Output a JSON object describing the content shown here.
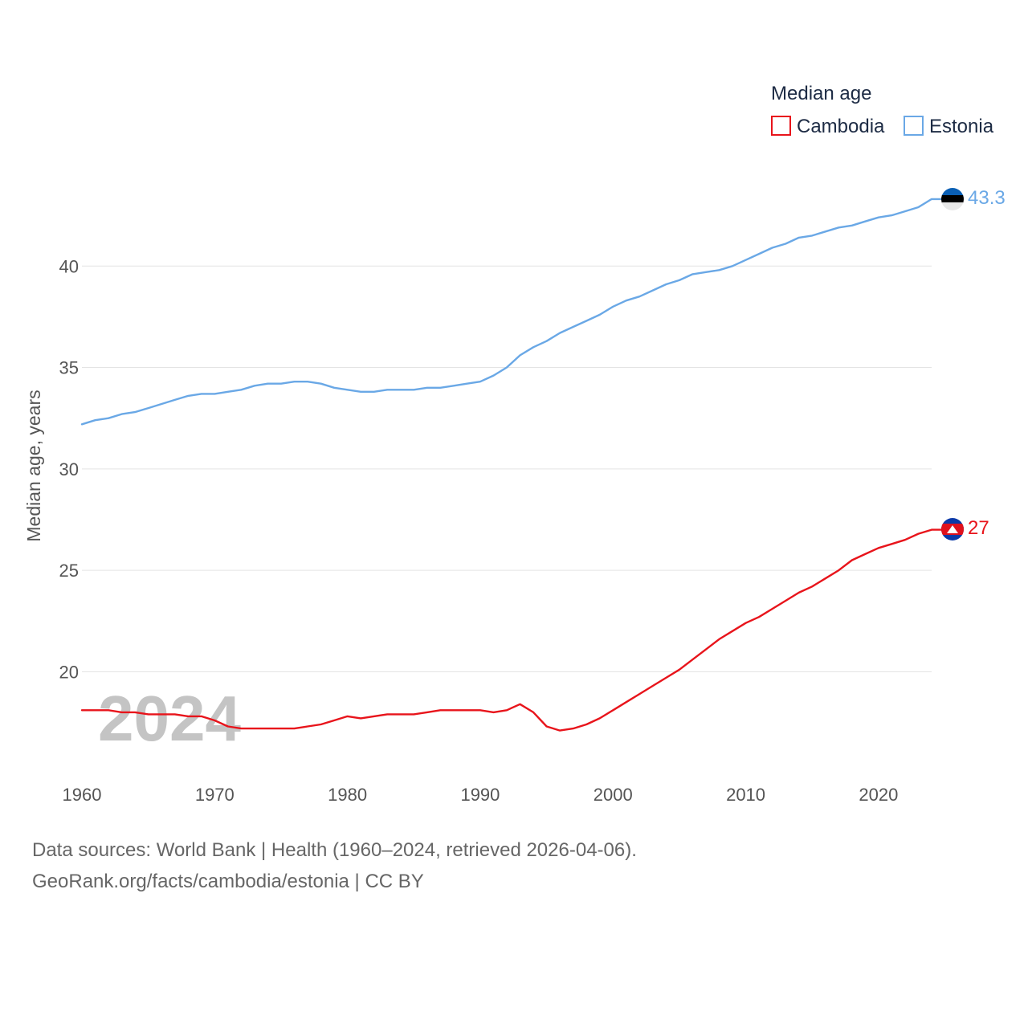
{
  "chart_data": {
    "type": "line",
    "title": "Median age",
    "ylabel": "Median age, years",
    "xlabel": "",
    "xlim": [
      1960,
      2024
    ],
    "ylim": [
      15.5,
      45
    ],
    "x_ticks": [
      1960,
      1970,
      1980,
      1990,
      2000,
      2010,
      2020
    ],
    "y_ticks": [
      20,
      25,
      30,
      35,
      40
    ],
    "grid": true,
    "legend_position": "top-right",
    "current_year": "2024",
    "x": [
      1960,
      1961,
      1962,
      1963,
      1964,
      1965,
      1966,
      1967,
      1968,
      1969,
      1970,
      1971,
      1972,
      1973,
      1974,
      1975,
      1976,
      1977,
      1978,
      1979,
      1980,
      1981,
      1982,
      1983,
      1984,
      1985,
      1986,
      1987,
      1988,
      1989,
      1990,
      1991,
      1992,
      1993,
      1994,
      1995,
      1996,
      1997,
      1998,
      1999,
      2000,
      2001,
      2002,
      2003,
      2004,
      2005,
      2006,
      2007,
      2008,
      2009,
      2010,
      2011,
      2012,
      2013,
      2014,
      2015,
      2016,
      2017,
      2018,
      2019,
      2020,
      2021,
      2022,
      2023,
      2024
    ],
    "series": [
      {
        "name": "Cambodia",
        "color": "#e8141b",
        "end_label": "27",
        "flag": "cambodia-flag",
        "values": [
          18.1,
          18.1,
          18.1,
          18.0,
          18.0,
          17.9,
          17.9,
          17.9,
          17.8,
          17.8,
          17.6,
          17.3,
          17.2,
          17.2,
          17.2,
          17.2,
          17.2,
          17.3,
          17.4,
          17.6,
          17.8,
          17.7,
          17.8,
          17.9,
          17.9,
          17.9,
          18.0,
          18.1,
          18.1,
          18.1,
          18.1,
          18.0,
          18.1,
          18.4,
          18.0,
          17.3,
          17.1,
          17.2,
          17.4,
          17.7,
          18.1,
          18.5,
          18.9,
          19.3,
          19.7,
          20.1,
          20.6,
          21.1,
          21.6,
          22.0,
          22.4,
          22.7,
          23.1,
          23.5,
          23.9,
          24.2,
          24.6,
          25.0,
          25.5,
          25.8,
          26.1,
          26.3,
          26.5,
          26.8,
          27.0
        ]
      },
      {
        "name": "Estonia",
        "color": "#6aa8e6",
        "end_label": "43.3",
        "flag": "estonia-flag",
        "values": [
          32.2,
          32.4,
          32.5,
          32.7,
          32.8,
          33.0,
          33.2,
          33.4,
          33.6,
          33.7,
          33.7,
          33.8,
          33.9,
          34.1,
          34.2,
          34.2,
          34.3,
          34.3,
          34.2,
          34.0,
          33.9,
          33.8,
          33.8,
          33.9,
          33.9,
          33.9,
          34.0,
          34.0,
          34.1,
          34.2,
          34.3,
          34.6,
          35.0,
          35.6,
          36.0,
          36.3,
          36.7,
          37.0,
          37.3,
          37.6,
          38.0,
          38.3,
          38.5,
          38.8,
          39.1,
          39.3,
          39.6,
          39.7,
          39.8,
          40.0,
          40.3,
          40.6,
          40.9,
          41.1,
          41.4,
          41.5,
          41.7,
          41.9,
          42.0,
          42.2,
          42.4,
          42.5,
          42.7,
          42.9,
          43.3
        ]
      }
    ]
  },
  "footer": {
    "sources": "Data sources: World Bank | Health (1960–2024, retrieved 2026-04-06).",
    "credit": "GeoRank.org/facts/cambodia/estonia | CC BY"
  }
}
